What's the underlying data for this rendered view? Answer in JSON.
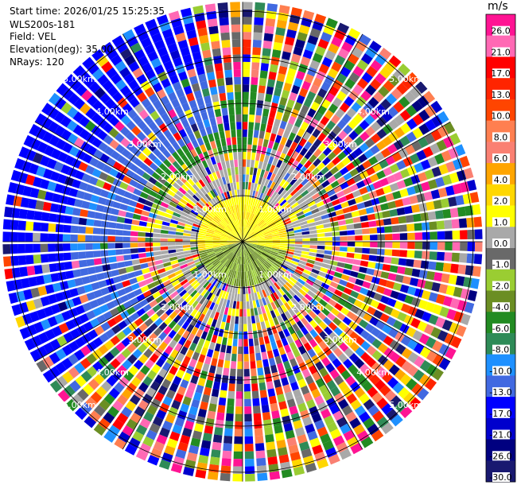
{
  "header": {
    "start_time": "Start time: 2026/01/25 15:25:35",
    "instrument": "WLS200s-181",
    "field": "Field: VEL",
    "elevation": "Elevation(deg): 35.00",
    "nrays": "NRays: 120"
  },
  "colorbar": {
    "unit": "m/s",
    "ticks": [
      "26.0",
      "21.0",
      "17.0",
      "13.0",
      "10.0",
      "8.0",
      "6.0",
      "4.0",
      "2.0",
      "1.0",
      "0.0",
      "-1.0",
      "-2.0",
      "-4.0",
      "-6.0",
      "-8.0",
      "-10.0",
      "-13.0",
      "-17.0",
      "-21.0",
      "-26.0",
      "-30.0"
    ],
    "colors": [
      "#ff1493",
      "#ff69b4",
      "#ff0000",
      "#ff2400",
      "#ff4500",
      "#ff7f50",
      "#fa8072",
      "#ffa500",
      "#ffd700",
      "#ffff00",
      "#a9a9a9",
      "#696969",
      "#9acd32",
      "#6b8e23",
      "#228b22",
      "#2e8b57",
      "#1e90ff",
      "#4169e1",
      "#0000ff",
      "#0000cd",
      "#000080",
      "#191970"
    ]
  },
  "chart_data": {
    "type": "ppi",
    "field": "VEL",
    "units": "m/s",
    "nrays": 120,
    "elevation_deg": 35.0,
    "range_rings_km": [
      1.0,
      2.0,
      3.0,
      4.0,
      5.0
    ],
    "ring_labels": [
      "1.00km",
      "2.00km",
      "3.00km",
      "4.00km",
      "5.00km"
    ],
    "max_range_km": 5.2,
    "azimuth_lines_deg": [
      0,
      30,
      60,
      90,
      120,
      150,
      180,
      210,
      240,
      270,
      300,
      330
    ],
    "velocity_min": -30.0,
    "velocity_max": 30.0
  }
}
